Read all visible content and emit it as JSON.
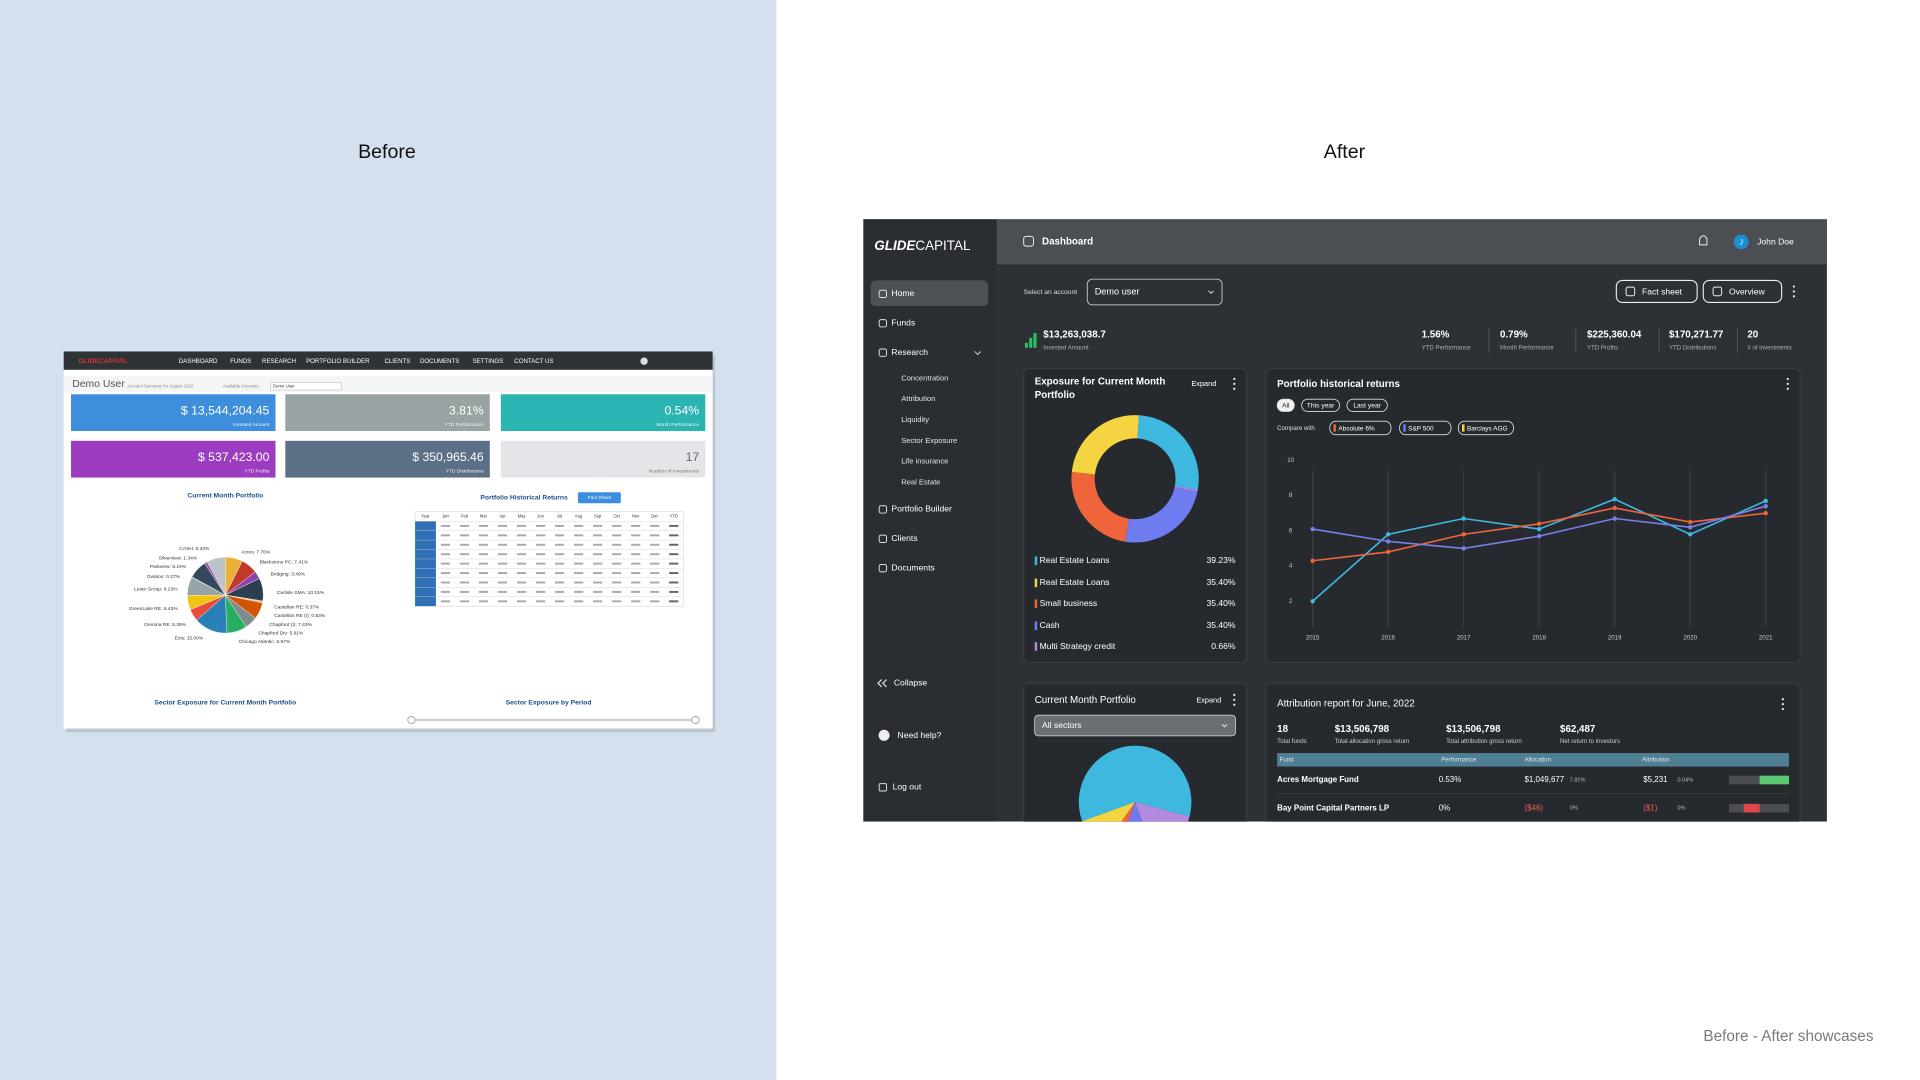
{
  "before": {
    "heading": "Before",
    "logo": "GLIDECAPITAL",
    "nav": [
      "DASHBOARD",
      "FUNDS",
      "RESEARCH",
      "PORTFOLIO BUILDER",
      "CLIENTS",
      "DOCUMENTS",
      "SETTINGS",
      "CONTACT US"
    ],
    "title": "Demo User",
    "subtitle": "Account Summary for August 2022",
    "account_label": "Available Accounts",
    "account": "Demo User",
    "tile_colors": [
      "#3d8fde",
      "#9aa3a3",
      "#2bb5b2",
      "#9b3cc1",
      "#5b6f86",
      "#e3e5e8"
    ],
    "kpis": [
      {
        "value": "$ 13,544,204.45",
        "label": "Invested Amount"
      },
      {
        "value": "3.81%",
        "label": "YTD Performance"
      },
      {
        "value": "0.54%",
        "label": "Month Performance"
      },
      {
        "value": "$ 537,423.00",
        "label": "YTD Profits"
      },
      {
        "value": "$ 350,965.46",
        "label": "YTD Distributions"
      },
      {
        "value": "17",
        "label": "Number of Investments"
      }
    ],
    "portfolio_title": "Current Month Portfolio",
    "pie": {
      "type": "pie",
      "values": [
        7.76,
        7.41,
        3.49,
        10.15,
        0.37,
        0.53,
        7.43,
        5.61,
        8.97,
        15.0,
        5.39,
        6.43,
        8.23,
        0.27,
        8.19,
        1.34,
        8.32
      ],
      "value_labels": [
        "Acres: 7.76%",
        "Blackstone PC: 7.41%",
        "Bridging: 3.49%",
        "Carlisle SMA: 10.15%",
        "Castellan RE: 0.37%",
        "Castellan RE (I): 0.53%",
        "Chapford (I): 7.43%",
        "Chapford Div: 5.61%",
        "Chicago Atlantic: 8.97%",
        "Exis: 15.00%",
        "Gemma RE: 5.39%",
        "GreenLake RE: 6.43%",
        "Leste Group: 8.23%",
        "Ovation: 0.27%",
        "Parkview: 8.19%",
        "Silverview: 1.34%",
        "CASH: 8.32%"
      ],
      "colors": [
        "#e8b23a",
        "#c0392b",
        "#8e44ad",
        "#2c3e50",
        "#16a085",
        "#f39c12",
        "#d35400",
        "#7f8c8d",
        "#27ae60",
        "#2980b9",
        "#e74c3c",
        "#f1c40f",
        "#95a5a6",
        "#1abc9c",
        "#34495e",
        "#9b59b6",
        "#bdc3c7"
      ]
    },
    "returns_title": "Portfolio Historical Returns",
    "fact_sheet": "Fact Sheet",
    "table_header": [
      "Year",
      "Jan",
      "Feb",
      "Mar",
      "Apr",
      "May",
      "Jun",
      "Jul",
      "Aug",
      "Sep",
      "Oct",
      "Nov",
      "Dec",
      "YTD"
    ],
    "sector_title": "Sector Exposure for Current Month Portfolio",
    "period_title": "Sector Exposure by Period"
  },
  "after": {
    "heading": "After",
    "logo": {
      "bold": "GLIDE",
      "light": "CAPITAL"
    },
    "page_title": "Dashboard",
    "user": {
      "initial": "J",
      "name": "John Doe"
    },
    "nav": [
      "Home",
      "Funds",
      "Research"
    ],
    "research_items": [
      "Concentration",
      "Attribution",
      "Liquidity",
      "Sector Exposure",
      "Life insurance",
      "Real Estate"
    ],
    "nav2": [
      "Portfolio Builder",
      "Clients",
      "Documents"
    ],
    "collapse": "Collapse",
    "help": "Need help?",
    "logout": "Log out",
    "account_label": "Select an account",
    "account": "Demo user",
    "buttons": [
      "Fact sheet",
      "Overview"
    ],
    "kpis": [
      {
        "value": "$13,263,038.7",
        "label": "Invested Amount"
      },
      {
        "value": "1.56%",
        "label": "YTD Performance"
      },
      {
        "value": "0.79%",
        "label": "Month Performance"
      },
      {
        "value": "$225,360.04",
        "label": "YTD Profits"
      },
      {
        "value": "$170,271.77",
        "label": "YTD Distributions"
      },
      {
        "value": "20",
        "label": "# of investments"
      }
    ],
    "exposure": {
      "title": "Exposure for Current Month Portfolio",
      "expand": "Expand",
      "chart": {
        "type": "donut",
        "categories": [
          "Real Estate Loans",
          "Real Estate Loans",
          "Small business",
          "Cash",
          "Multi Strategy credit"
        ],
        "values": [
          39.23,
          35.4,
          35.4,
          35.4,
          0.66
        ],
        "value_labels": [
          "39.23%",
          "35.40%",
          "35.40%",
          "35.40%",
          "0.66%"
        ],
        "colors": [
          "#3fb8e0",
          "#f5d442",
          "#f0643c",
          "#6f7cf0",
          "#b48ae0"
        ]
      }
    },
    "returns": {
      "title": "Portfolio historical returns",
      "filters": [
        "All",
        "This year",
        "Last year"
      ],
      "compare_label": "Compare with",
      "compare": [
        {
          "name": "Absolute 6%",
          "color": "#f0643c"
        },
        {
          "name": "S&P 500",
          "color": "#6f7cf0"
        },
        {
          "name": "Barclays AGG",
          "color": "#f5d442"
        }
      ],
      "chart": {
        "type": "line",
        "x": [
          2015,
          2016,
          2017,
          2018,
          2019,
          2020,
          2021
        ],
        "series": [
          {
            "color": "#3fb8e0",
            "values": [
              2.0,
              5.8,
              6.7,
              6.1,
              7.8,
              5.8,
              7.7
            ]
          },
          {
            "color": "#f0643c",
            "values": [
              4.3,
              4.8,
              5.8,
              6.4,
              7.3,
              6.5,
              7.0
            ]
          },
          {
            "color": "#7a7fe8",
            "values": [
              6.1,
              5.4,
              5.0,
              5.7,
              6.7,
              6.2,
              7.4
            ]
          }
        ],
        "xlim": [
          2015,
          2021
        ],
        "ylim": [
          1,
          10
        ],
        "xticks": [
          2015,
          2016,
          2017,
          2018,
          2019,
          2020,
          2021
        ],
        "yticks": [
          2,
          4,
          6,
          8,
          10
        ],
        "grid": true
      }
    },
    "current": {
      "title": "Current Month Portfolio",
      "expand": "Expand",
      "filter": "All sectors"
    },
    "attribution": {
      "title": "Attribution report for June, 2022",
      "stats": [
        {
          "value": "18",
          "label": "Total funds"
        },
        {
          "value": "$13,506,798",
          "label": "Total allocation gross return"
        },
        {
          "value": "$13,506,798",
          "label": "Total attribution gross return"
        },
        {
          "value": "$62,487",
          "label": "Net return to investors"
        }
      ],
      "columns": [
        "Fund",
        "Performance",
        "Allocation",
        "Attribution"
      ],
      "rows": [
        [
          "Acres Mortgage Fund",
          "0.53%",
          "$1,049,677",
          "7.81%",
          "$5,231",
          "0.04%"
        ],
        [
          "Bay Point Capital Partners LP",
          "0%",
          "($46)",
          "0%",
          "($1)",
          "0%"
        ]
      ]
    }
  },
  "footer": "Before - After showcases"
}
